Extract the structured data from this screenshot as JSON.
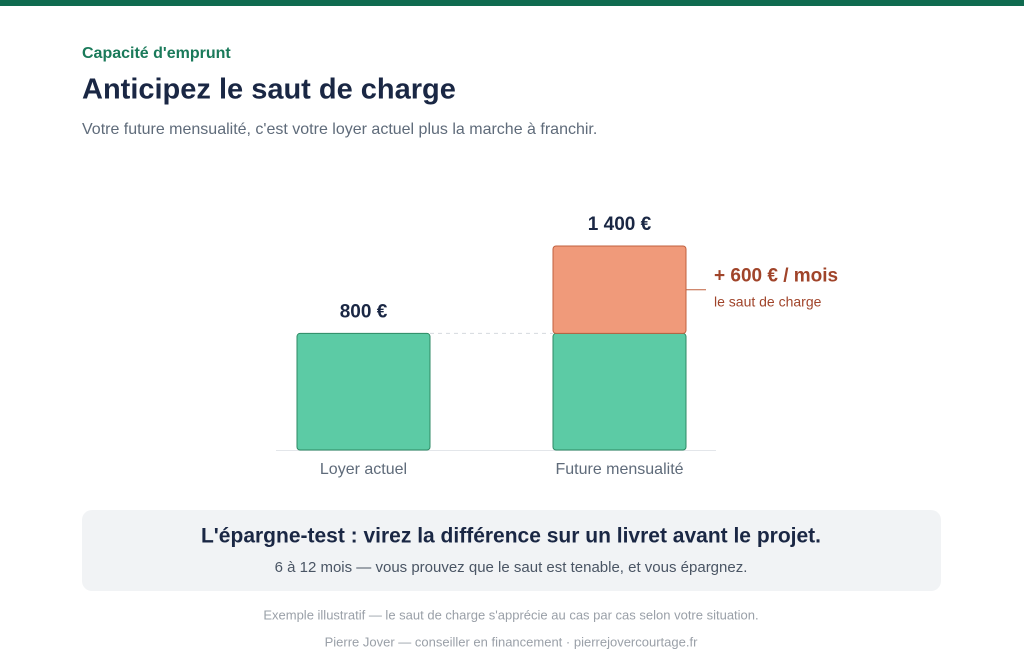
{
  "header": {
    "kicker": "Capacité d'emprunt",
    "title": "Anticipez le saut de charge",
    "subtitle": "Votre future mensualité, c'est votre loyer actuel plus la marche à franchir."
  },
  "chart_data": {
    "type": "bar",
    "stacked": true,
    "categories": [
      "Loyer actuel",
      "Future mensualité"
    ],
    "series": [
      {
        "color": "#5ccba5",
        "values": [
          800,
          800
        ]
      },
      {
        "color": "#f09a7a",
        "values": [
          null,
          600
        ],
        "value_labels": [
          null,
          "+ 600 € / mois"
        ]
      }
    ],
    "totals": [
      800,
      1400
    ],
    "total_labels": [
      "800 €",
      "1 400 €"
    ],
    "annotation": "le saut de charge",
    "ylim": [
      0,
      1400
    ]
  },
  "callout": {
    "title": "L'épargne-test : virez la différence sur un livret avant le projet.",
    "text": "6 à 12 mois — vous prouvez que le saut est tenable, et vous épargnez."
  },
  "footer": {
    "note": "Exemple illustratif — le saut de charge s'apprécie au cas par cas selon votre situation.",
    "credit": "Pierre Jover — conseiller en financement · pierrejovercourtage.fr"
  }
}
